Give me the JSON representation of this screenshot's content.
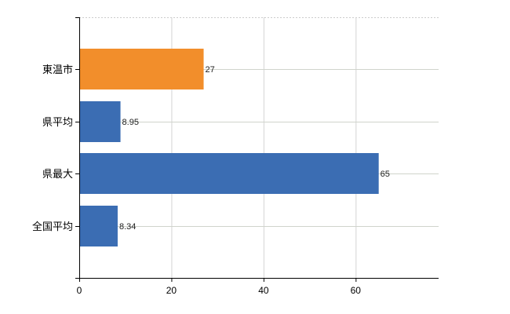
{
  "chart_data": {
    "type": "bar",
    "orientation": "horizontal",
    "categories": [
      "東温市",
      "県平均",
      "県最大",
      "全国平均"
    ],
    "values": [
      27,
      8.95,
      65,
      8.34
    ],
    "data_labels": [
      "27",
      "8.95",
      "65",
      "8.34"
    ],
    "bar_colors": [
      "#f28e2b",
      "#3b6db3",
      "#3b6db3",
      "#3b6db3"
    ],
    "xlim": [
      0,
      78
    ],
    "x_ticks": [
      0,
      20,
      40,
      60
    ],
    "x_tick_labels": [
      "0",
      "20",
      "40",
      "60"
    ],
    "title": "",
    "xlabel": "",
    "ylabel": "",
    "grid": true,
    "legend": "none"
  }
}
